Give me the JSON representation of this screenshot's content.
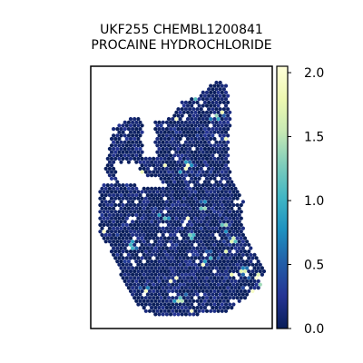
{
  "chart_data": {
    "type": "heatmap",
    "title_line1": "UKF255 CHEMBL1200841",
    "title_line2": "PROCAINE HYDROCHLORIDE",
    "xlabel": "",
    "ylabel": "",
    "colorbar": {
      "ticks": [
        "0.0",
        "0.5",
        "1.0",
        "1.5",
        "2.0"
      ],
      "tick_values": [
        0.0,
        0.5,
        1.0,
        1.5,
        2.0
      ],
      "range": [
        0.0,
        2.05
      ],
      "colormap": "YlGnBu",
      "stops": [
        "#081d58",
        "#253494",
        "#225ea8",
        "#1d91c0",
        "#41b6c4",
        "#7fcdbb",
        "#c7e9b4",
        "#edf8b1",
        "#ffffd9"
      ]
    },
    "summary": {
      "typical_value_range": [
        0.0,
        0.3
      ],
      "hotspot_value_range": [
        0.8,
        2.0
      ],
      "note": "spatial hex-spot expression map of a tissue section; most spots near 0"
    }
  }
}
